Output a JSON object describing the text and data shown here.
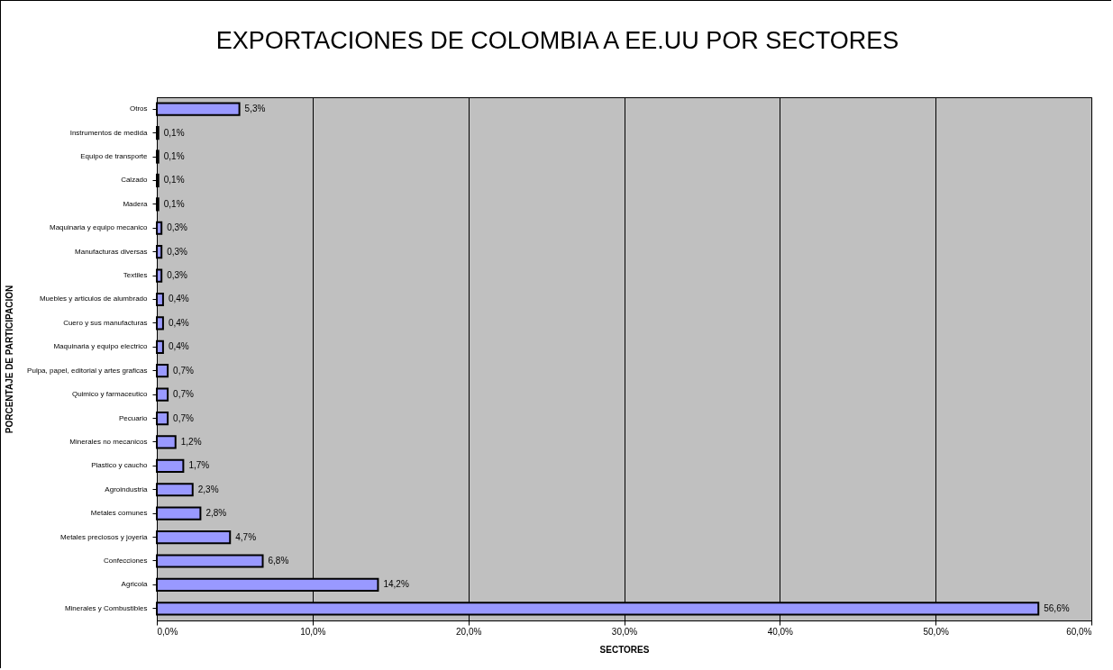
{
  "chart_data": {
    "type": "bar",
    "orientation": "horizontal",
    "title": "EXPORTACIONES DE COLOMBIA A EE.UU  POR SECTORES",
    "xlabel": "SECTORES",
    "ylabel": "PORCENTAJE DE PARTICIPACION",
    "categories": [
      "Otros",
      "Instrumentos de medida",
      "Equipo de transporte",
      "Calzado",
      "Madera",
      "Maquinaria y equipo mecanico",
      "Manufacturas diversas",
      "Textiles",
      "Muebles y articulos de alumbrado",
      "Cuero y sus manufacturas",
      "Maquinaria y equipo electrico",
      "Pulpa, papel, editorial y artes graficas",
      "Quimico y farmaceutico",
      "Pecuario",
      "Minerales no mecanicos",
      "Plastico y caucho",
      "Agroindustria",
      "Metales comunes",
      "Metales preciosos y joyeria",
      "Confecciones",
      "Agricola",
      "Minerales y Combustibles"
    ],
    "values": [
      5.3,
      0.1,
      0.1,
      0.1,
      0.1,
      0.3,
      0.3,
      0.3,
      0.4,
      0.4,
      0.4,
      0.7,
      0.7,
      0.7,
      1.2,
      1.7,
      2.3,
      2.8,
      4.7,
      6.8,
      14.2,
      56.6
    ],
    "value_labels": [
      "5,3%",
      "0,1%",
      "0,1%",
      "0,1%",
      "0,1%",
      "0,3%",
      "0,3%",
      "0,3%",
      "0,4%",
      "0,4%",
      "0,4%",
      "0,7%",
      "0,7%",
      "0,7%",
      "1,2%",
      "1,7%",
      "2,3%",
      "2,8%",
      "4,7%",
      "6,8%",
      "14,2%",
      "56,6%"
    ],
    "color": "#9999ff",
    "xlim": [
      0,
      60
    ],
    "xticks": [
      {
        "value": 0,
        "label": "0,0%"
      },
      {
        "value": 10,
        "label": "10,0%"
      },
      {
        "value": 20,
        "label": "20,0%"
      },
      {
        "value": 30,
        "label": "30,0%"
      },
      {
        "value": 40,
        "label": "40,0%"
      },
      {
        "value": 50,
        "label": "50,0%"
      },
      {
        "value": 60,
        "label": "60,0%"
      }
    ],
    "grid": "x"
  }
}
